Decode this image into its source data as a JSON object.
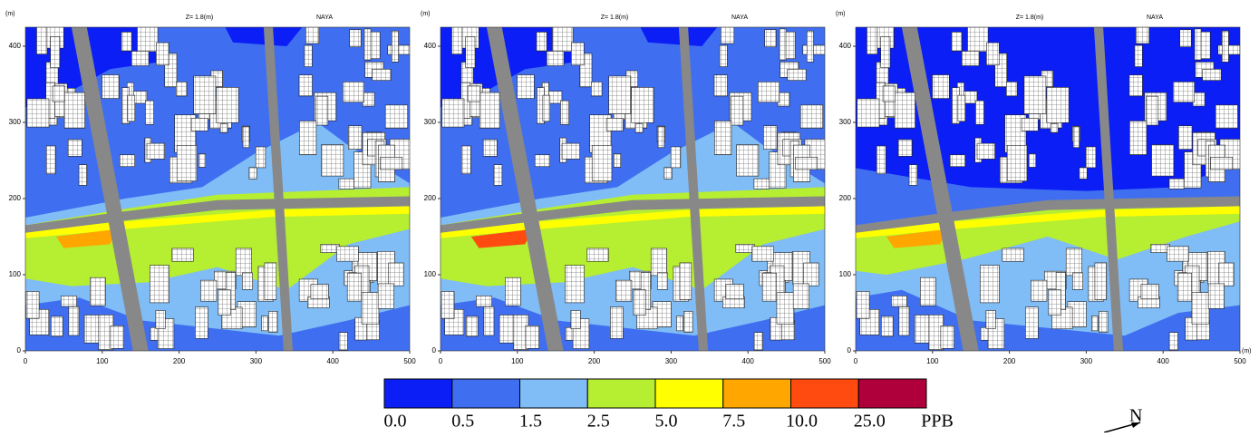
{
  "figure": {
    "panels": [
      {
        "title": "Z= 1.8(m)",
        "label": "NAYA",
        "y_unit": "(m)"
      },
      {
        "title": "Z= 1.8(m)",
        "label": "NAYA",
        "y_unit": "(m)"
      },
      {
        "title": "Z= 1.8(m)",
        "label": "NAYA",
        "y_unit": "(m)",
        "x_unit": "(m)"
      }
    ],
    "xlim": [
      0,
      500
    ],
    "ylim": [
      0,
      425
    ],
    "xticks": [
      0,
      100,
      200,
      300,
      400,
      500
    ],
    "yticks": [
      0,
      100,
      200,
      300,
      400
    ],
    "colorbar": {
      "levels": [
        {
          "value": 0,
          "label": "0.0"
        },
        {
          "value": 0.5,
          "label": "0.5"
        },
        {
          "value": 1.5,
          "label": "1.5"
        },
        {
          "value": 2.5,
          "label": "2.5"
        },
        {
          "value": 5,
          "label": "5.0"
        },
        {
          "value": 7.5,
          "label": "7.5"
        },
        {
          "value": 10,
          "label": "10.0"
        },
        {
          "value": 25,
          "label": "25.0"
        }
      ],
      "colors": [
        "#0a1ef5",
        "#3f6ef0",
        "#80bcf5",
        "#b6ee32",
        "#ffff00",
        "#ffa600",
        "#ff4a10",
        "#b0003c"
      ],
      "unit": "PPB"
    },
    "north": "N"
  }
}
